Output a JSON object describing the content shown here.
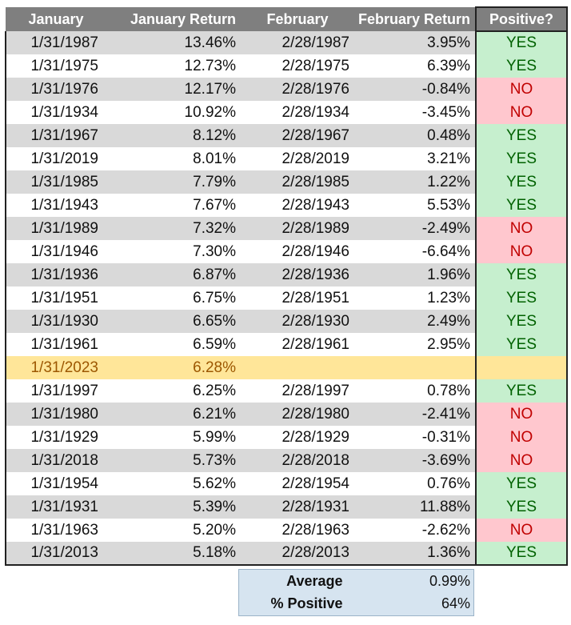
{
  "headers": {
    "january": "January",
    "january_return": "January Return",
    "february": "February",
    "february_return": "February Return",
    "positive": "Positive?"
  },
  "rows": [
    {
      "jan": "1/31/1987",
      "jan_ret": "13.46%",
      "feb": "2/28/1987",
      "feb_ret": "3.95%",
      "positive": "YES"
    },
    {
      "jan": "1/31/1975",
      "jan_ret": "12.73%",
      "feb": "2/28/1975",
      "feb_ret": "6.39%",
      "positive": "YES"
    },
    {
      "jan": "1/31/1976",
      "jan_ret": "12.17%",
      "feb": "2/28/1976",
      "feb_ret": "-0.84%",
      "positive": "NO"
    },
    {
      "jan": "1/31/1934",
      "jan_ret": "10.92%",
      "feb": "2/28/1934",
      "feb_ret": "-3.45%",
      "positive": "NO"
    },
    {
      "jan": "1/31/1967",
      "jan_ret": "8.12%",
      "feb": "2/28/1967",
      "feb_ret": "0.48%",
      "positive": "YES"
    },
    {
      "jan": "1/31/2019",
      "jan_ret": "8.01%",
      "feb": "2/28/2019",
      "feb_ret": "3.21%",
      "positive": "YES"
    },
    {
      "jan": "1/31/1985",
      "jan_ret": "7.79%",
      "feb": "2/28/1985",
      "feb_ret": "1.22%",
      "positive": "YES"
    },
    {
      "jan": "1/31/1943",
      "jan_ret": "7.67%",
      "feb": "2/28/1943",
      "feb_ret": "5.53%",
      "positive": "YES"
    },
    {
      "jan": "1/31/1989",
      "jan_ret": "7.32%",
      "feb": "2/28/1989",
      "feb_ret": "-2.49%",
      "positive": "NO"
    },
    {
      "jan": "1/31/1946",
      "jan_ret": "7.30%",
      "feb": "2/28/1946",
      "feb_ret": "-6.64%",
      "positive": "NO"
    },
    {
      "jan": "1/31/1936",
      "jan_ret": "6.87%",
      "feb": "2/28/1936",
      "feb_ret": "1.96%",
      "positive": "YES"
    },
    {
      "jan": "1/31/1951",
      "jan_ret": "6.75%",
      "feb": "2/28/1951",
      "feb_ret": "1.23%",
      "positive": "YES"
    },
    {
      "jan": "1/31/1930",
      "jan_ret": "6.65%",
      "feb": "2/28/1930",
      "feb_ret": "2.49%",
      "positive": "YES"
    },
    {
      "jan": "1/31/1961",
      "jan_ret": "6.59%",
      "feb": "2/28/1961",
      "feb_ret": "2.95%",
      "positive": "YES"
    },
    {
      "jan": "1/31/2023",
      "jan_ret": "6.28%",
      "feb": "",
      "feb_ret": "",
      "positive": "",
      "highlight": true
    },
    {
      "jan": "1/31/1997",
      "jan_ret": "6.25%",
      "feb": "2/28/1997",
      "feb_ret": "0.78%",
      "positive": "YES"
    },
    {
      "jan": "1/31/1980",
      "jan_ret": "6.21%",
      "feb": "2/28/1980",
      "feb_ret": "-2.41%",
      "positive": "NO"
    },
    {
      "jan": "1/31/1929",
      "jan_ret": "5.99%",
      "feb": "2/28/1929",
      "feb_ret": "-0.31%",
      "positive": "NO"
    },
    {
      "jan": "1/31/2018",
      "jan_ret": "5.73%",
      "feb": "2/28/2018",
      "feb_ret": "-3.69%",
      "positive": "NO"
    },
    {
      "jan": "1/31/1954",
      "jan_ret": "5.62%",
      "feb": "2/28/1954",
      "feb_ret": "0.76%",
      "positive": "YES"
    },
    {
      "jan": "1/31/1931",
      "jan_ret": "5.39%",
      "feb": "2/28/1931",
      "feb_ret": "11.88%",
      "positive": "YES"
    },
    {
      "jan": "1/31/1963",
      "jan_ret": "5.20%",
      "feb": "2/28/1963",
      "feb_ret": "-2.62%",
      "positive": "NO"
    },
    {
      "jan": "1/31/2013",
      "jan_ret": "5.18%",
      "feb": "2/28/2013",
      "feb_ret": "1.36%",
      "positive": "YES"
    }
  ],
  "summary": {
    "average_label": "Average",
    "average_value": "0.99%",
    "positive_label": "% Positive",
    "positive_value": "64%"
  },
  "colors": {
    "header_bg": "#7f7f7f",
    "stripe_gray": "#d9d9d9",
    "highlight_row": "#ffe699",
    "yes_bg": "#c6efce",
    "yes_text": "#006100",
    "no_bg": "#ffc7ce",
    "no_text": "#c00000",
    "summary_bg": "#d6e4f0"
  }
}
